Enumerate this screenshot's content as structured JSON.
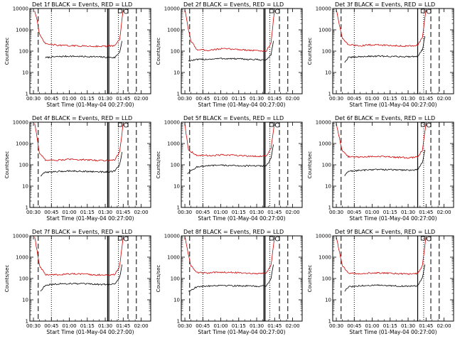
{
  "figure": {
    "background": "#ffffff"
  },
  "chart_data": [
    {
      "type": "line",
      "title": "Det 1f BLACK = Events, RED = LLD",
      "ylabel": "Counts/sec",
      "xlabel": "Start Time (01-May-04 00:27:00)",
      "xscale": "time",
      "yscale": "log",
      "ylim": [
        1,
        10000
      ],
      "x_ticks": [
        "00:30",
        "00:45",
        "01:00",
        "01:15",
        "01:30",
        "01:45",
        "02:00"
      ],
      "y_ticks": [
        "1",
        "10",
        "100",
        "1000",
        "10000"
      ],
      "series": [
        {
          "color": "#000000",
          "x": [
            "00:40",
            "00:50",
            "01:00",
            "01:10",
            "01:20",
            "01:30",
            "01:38",
            "01:42",
            "01:44"
          ],
          "values": [
            50,
            55,
            58,
            56,
            55,
            52,
            50,
            90,
            300
          ]
        },
        {
          "color": "#d00000",
          "x": [
            "00:31",
            "00:33",
            "00:35",
            "00:40",
            "00:50",
            "01:00",
            "01:10",
            "01:20",
            "01:30",
            "01:38",
            "01:42",
            "01:44",
            "01:45"
          ],
          "values": [
            8000,
            3000,
            600,
            220,
            190,
            180,
            175,
            170,
            170,
            180,
            350,
            3000,
            9000
          ]
        }
      ],
      "markers": {
        "dashed": [
          "00:34",
          "01:49",
          "01:56"
        ],
        "dotted": [
          "00:45",
          "01:41"
        ],
        "solid": [
          "01:32",
          "01:33"
        ]
      }
    },
    {
      "type": "line",
      "title": "Det 2f BLACK = Events, RED = LLD",
      "ylabel": "Counts/sec",
      "xlabel": "Start Time (01-May-04 00:27:00)",
      "xscale": "time",
      "yscale": "log",
      "ylim": [
        1,
        10000
      ],
      "x_ticks": [
        "00:30",
        "00:45",
        "01:00",
        "01:15",
        "01:30",
        "01:45",
        "02:00"
      ],
      "y_ticks": [
        "1",
        "10",
        "100",
        "1000",
        "10000"
      ],
      "series": [
        {
          "color": "#000000",
          "x": [
            "00:33",
            "00:40",
            "00:50",
            "01:00",
            "01:10",
            "01:20",
            "01:30",
            "01:38",
            "01:42",
            "01:44"
          ],
          "values": [
            35,
            40,
            42,
            45,
            44,
            42,
            40,
            38,
            70,
            300
          ]
        },
        {
          "color": "#d00000",
          "x": [
            "00:30",
            "00:32",
            "00:35",
            "00:40",
            "00:50",
            "01:00",
            "01:10",
            "01:20",
            "01:30",
            "01:38",
            "01:42",
            "01:44",
            "01:45"
          ],
          "values": [
            9000,
            2000,
            300,
            120,
            110,
            130,
            125,
            115,
            105,
            100,
            250,
            3000,
            9000
          ]
        }
      ],
      "markers": {
        "dashed": [
          "00:34",
          "01:49",
          "01:56"
        ],
        "dotted": [
          "00:45",
          "01:41"
        ],
        "solid": [
          "01:36",
          "01:37"
        ]
      }
    },
    {
      "type": "line",
      "title": "Det 3f BLACK = Events, RED = LLD",
      "ylabel": "Counts/sec",
      "xlabel": "Start Time (01-May-04 00:27:00)",
      "xscale": "time",
      "yscale": "log",
      "ylim": [
        1,
        10000
      ],
      "x_ticks": [
        "00:30",
        "00:45",
        "01:00",
        "01:15",
        "01:30",
        "01:45",
        "02:00"
      ],
      "y_ticks": [
        "1",
        "10",
        "100",
        "1000",
        "10000"
      ],
      "series": [
        {
          "color": "#000000",
          "x": [
            "00:37",
            "00:40",
            "00:50",
            "01:00",
            "01:10",
            "01:20",
            "01:30",
            "01:38",
            "01:42",
            "01:44"
          ],
          "values": [
            30,
            50,
            55,
            58,
            58,
            56,
            55,
            58,
            120,
            500
          ]
        },
        {
          "color": "#d00000",
          "x": [
            "00:30",
            "00:32",
            "00:35",
            "00:40",
            "00:50",
            "01:00",
            "01:10",
            "01:20",
            "01:30",
            "01:38",
            "01:42",
            "01:44",
            "01:45"
          ],
          "values": [
            9000,
            2500,
            400,
            200,
            180,
            200,
            190,
            180,
            175,
            190,
            450,
            3500,
            9000
          ]
        }
      ],
      "markers": {
        "dashed": [
          "00:34",
          "01:49",
          "01:56"
        ],
        "dotted": [
          "00:45",
          "01:43"
        ],
        "solid": [
          "01:38"
        ]
      }
    },
    {
      "type": "line",
      "title": "Det 4f BLACK = Events, RED = LLD",
      "ylabel": "Counts/sec",
      "xlabel": "Start Time (01-May-04 00:27:00)",
      "xscale": "time",
      "yscale": "log",
      "ylim": [
        1,
        10000
      ],
      "x_ticks": [
        "00:30",
        "00:45",
        "01:00",
        "01:15",
        "01:30",
        "01:45",
        "02:00"
      ],
      "y_ticks": [
        "1",
        "10",
        "100",
        "1000",
        "10000"
      ],
      "series": [
        {
          "color": "#000000",
          "x": [
            "00:36",
            "00:40",
            "00:50",
            "01:00",
            "01:10",
            "01:20",
            "01:30",
            "01:38",
            "01:42",
            "01:44"
          ],
          "values": [
            30,
            45,
            48,
            52,
            50,
            48,
            46,
            50,
            100,
            400
          ]
        },
        {
          "color": "#d00000",
          "x": [
            "00:31",
            "00:33",
            "00:35",
            "00:40",
            "00:50",
            "01:00",
            "01:10",
            "01:20",
            "01:30",
            "01:38",
            "01:42",
            "01:44",
            "01:45"
          ],
          "values": [
            9000,
            2000,
            350,
            170,
            165,
            180,
            175,
            165,
            160,
            170,
            400,
            3000,
            9000
          ]
        }
      ],
      "markers": {
        "dashed": [
          "00:34",
          "01:49",
          "01:56"
        ],
        "dotted": [
          "00:45",
          "01:41"
        ],
        "solid": [
          "01:32",
          "01:33"
        ]
      }
    },
    {
      "type": "line",
      "title": "Det 5f BLACK = Events, RED = LLD",
      "ylabel": "Counts/sec",
      "xlabel": "Start Time (01-May-04 00:27:00)",
      "xscale": "time",
      "yscale": "log",
      "ylim": [
        1,
        10000
      ],
      "x_ticks": [
        "00:30",
        "00:45",
        "01:00",
        "01:15",
        "01:30",
        "01:45",
        "02:00"
      ],
      "y_ticks": [
        "1",
        "10",
        "100",
        "1000",
        "10000"
      ],
      "series": [
        {
          "color": "#000000",
          "x": [
            "00:32",
            "00:40",
            "00:50",
            "01:00",
            "01:10",
            "01:20",
            "01:30",
            "01:38",
            "01:42",
            "01:44"
          ],
          "values": [
            40,
            80,
            90,
            95,
            92,
            90,
            88,
            90,
            200,
            900
          ]
        },
        {
          "color": "#d00000",
          "x": [
            "00:30",
            "00:31",
            "00:33",
            "00:40",
            "00:50",
            "01:00",
            "01:10",
            "01:20",
            "01:30",
            "01:38",
            "01:42",
            "01:44",
            "01:45"
          ],
          "values": [
            9000,
            3000,
            500,
            280,
            270,
            290,
            280,
            265,
            250,
            260,
            600,
            4000,
            9000
          ]
        }
      ],
      "markers": {
        "dashed": [
          "00:34",
          "01:49",
          "01:56"
        ],
        "dotted": [
          "00:45",
          "01:41"
        ],
        "solid": [
          "01:36",
          "01:37"
        ]
      }
    },
    {
      "type": "line",
      "title": "Det 6f BLACK = Events, RED = LLD",
      "ylabel": "Counts/sec",
      "xlabel": "Start Time (01-May-04 00:27:00)",
      "xscale": "time",
      "yscale": "log",
      "ylim": [
        1,
        10000
      ],
      "x_ticks": [
        "00:30",
        "00:45",
        "01:00",
        "01:15",
        "01:30",
        "01:45",
        "02:00"
      ],
      "y_ticks": [
        "1",
        "10",
        "100",
        "1000",
        "10000"
      ],
      "series": [
        {
          "color": "#000000",
          "x": [
            "00:37",
            "00:40",
            "00:50",
            "01:00",
            "01:10",
            "01:20",
            "01:30",
            "01:38",
            "01:42",
            "01:44"
          ],
          "values": [
            30,
            50,
            55,
            60,
            60,
            58,
            56,
            60,
            130,
            500
          ]
        },
        {
          "color": "#d00000",
          "x": [
            "00:30",
            "00:32",
            "00:35",
            "00:40",
            "00:50",
            "01:00",
            "01:10",
            "01:20",
            "01:30",
            "01:38",
            "01:42",
            "01:44",
            "01:45"
          ],
          "values": [
            9000,
            2500,
            450,
            240,
            230,
            250,
            240,
            225,
            215,
            230,
            500,
            3500,
            9000
          ]
        }
      ],
      "markers": {
        "dashed": [
          "00:34",
          "01:49",
          "01:56"
        ],
        "dotted": [
          "00:45",
          "01:43"
        ],
        "solid": [
          "01:38"
        ]
      }
    },
    {
      "type": "line",
      "title": "Det 7f BLACK = Events, RED = LLD",
      "ylabel": "Counts/sec",
      "xlabel": "Start Time (01-May-04 00:27:00)",
      "xscale": "time",
      "yscale": "log",
      "ylim": [
        1,
        10000
      ],
      "x_ticks": [
        "00:30",
        "00:45",
        "01:00",
        "01:15",
        "01:30",
        "01:45",
        "02:00"
      ],
      "y_ticks": [
        "1",
        "10",
        "100",
        "1000",
        "10000"
      ],
      "series": [
        {
          "color": "#000000",
          "x": [
            "00:36",
            "00:40",
            "00:50",
            "01:00",
            "01:10",
            "01:20",
            "01:30",
            "01:38",
            "01:42",
            "01:44"
          ],
          "values": [
            25,
            50,
            55,
            58,
            56,
            54,
            52,
            55,
            110,
            450
          ]
        },
        {
          "color": "#d00000",
          "x": [
            "00:31",
            "00:33",
            "00:35",
            "00:40",
            "00:50",
            "01:00",
            "01:10",
            "01:20",
            "01:30",
            "01:38",
            "01:42",
            "01:44",
            "01:45"
          ],
          "values": [
            9000,
            2000,
            400,
            150,
            150,
            165,
            160,
            150,
            145,
            150,
            380,
            3000,
            9000
          ]
        }
      ],
      "markers": {
        "dashed": [
          "00:34",
          "01:49",
          "01:56"
        ],
        "dotted": [
          "00:45",
          "01:41"
        ],
        "solid": [
          "01:32",
          "01:33"
        ]
      }
    },
    {
      "type": "line",
      "title": "Det 8f BLACK = Events, RED = LLD",
      "ylabel": "Counts/sec",
      "xlabel": "Start Time (01-May-04 00:27:00)",
      "xscale": "time",
      "yscale": "log",
      "ylim": [
        1,
        10000
      ],
      "x_ticks": [
        "00:30",
        "00:45",
        "01:00",
        "01:15",
        "01:30",
        "01:45",
        "02:00"
      ],
      "y_ticks": [
        "1",
        "10",
        "100",
        "1000",
        "10000"
      ],
      "series": [
        {
          "color": "#000000",
          "x": [
            "00:33",
            "00:40",
            "00:50",
            "01:00",
            "01:10",
            "01:20",
            "01:30",
            "01:38",
            "01:42",
            "01:44"
          ],
          "values": [
            25,
            40,
            45,
            48,
            46,
            45,
            43,
            45,
            100,
            450
          ]
        },
        {
          "color": "#d00000",
          "x": [
            "00:30",
            "00:32",
            "00:35",
            "00:40",
            "00:50",
            "01:00",
            "01:10",
            "01:20",
            "01:30",
            "01:38",
            "01:42",
            "01:44",
            "01:45"
          ],
          "values": [
            9000,
            2500,
            400,
            190,
            180,
            200,
            195,
            180,
            170,
            180,
            420,
            3500,
            9000
          ]
        }
      ],
      "markers": {
        "dashed": [
          "00:34",
          "01:49",
          "01:56"
        ],
        "dotted": [
          "00:45",
          "01:41"
        ],
        "solid": [
          "01:36",
          "01:37"
        ]
      }
    },
    {
      "type": "line",
      "title": "Det 9f BLACK = Events, RED = LLD",
      "ylabel": "Counts/sec",
      "xlabel": "Start Time (01-May-04 00:27:00)",
      "xscale": "time",
      "yscale": "log",
      "ylim": [
        1,
        10000
      ],
      "x_ticks": [
        "00:30",
        "00:45",
        "01:00",
        "01:15",
        "01:30",
        "01:45",
        "02:00"
      ],
      "y_ticks": [
        "1",
        "10",
        "100",
        "1000",
        "10000"
      ],
      "series": [
        {
          "color": "#000000",
          "x": [
            "00:37",
            "00:40",
            "00:50",
            "01:00",
            "01:10",
            "01:20",
            "01:30",
            "01:38",
            "01:42",
            "01:44"
          ],
          "values": [
            25,
            40,
            45,
            48,
            47,
            45,
            43,
            46,
            110,
            450
          ]
        },
        {
          "color": "#d00000",
          "x": [
            "00:30",
            "00:32",
            "00:35",
            "00:40",
            "00:50",
            "01:00",
            "01:10",
            "01:20",
            "01:30",
            "01:38",
            "01:42",
            "01:44",
            "01:45"
          ],
          "values": [
            9000,
            2500,
            400,
            180,
            170,
            185,
            180,
            170,
            160,
            170,
            400,
            3500,
            9000
          ]
        }
      ],
      "markers": {
        "dashed": [
          "00:34",
          "01:49",
          "01:56"
        ],
        "dotted": [
          "00:45",
          "01:43"
        ],
        "solid": [
          "01:38"
        ]
      }
    }
  ]
}
